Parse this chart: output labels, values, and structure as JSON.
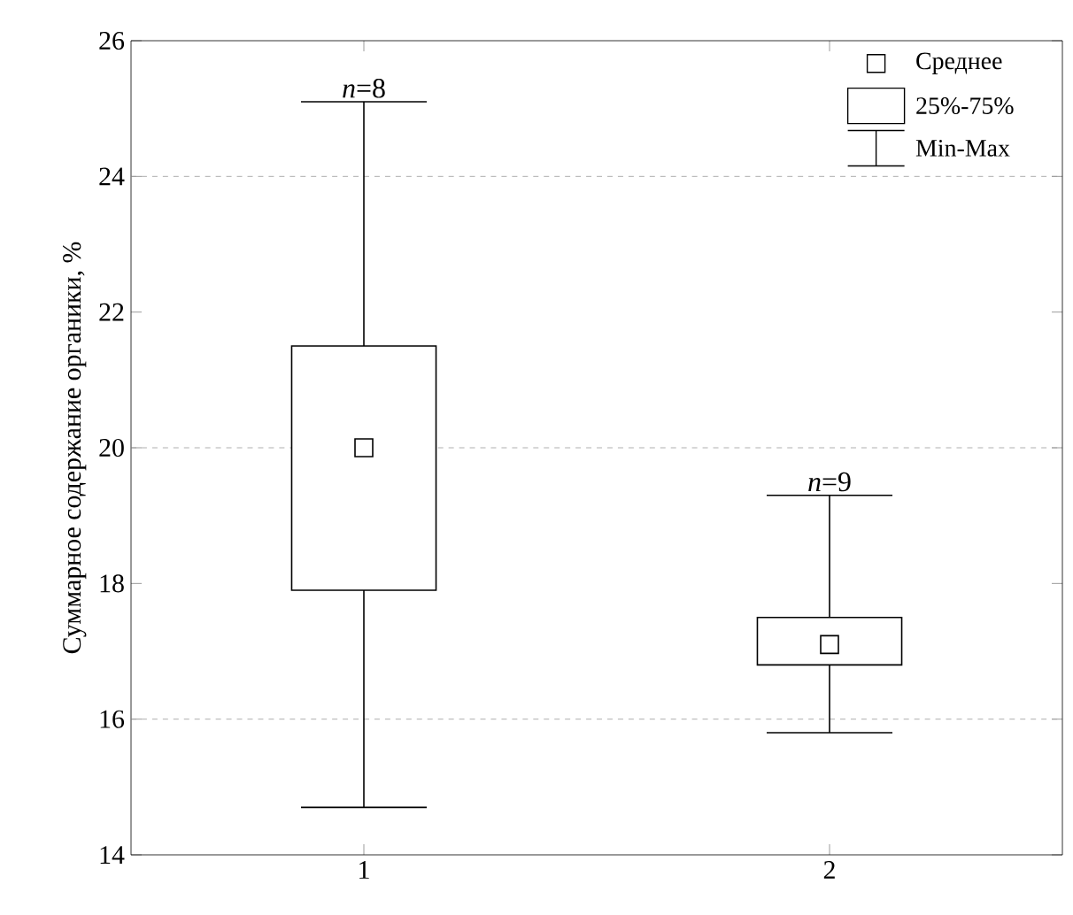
{
  "chart_data": {
    "type": "box",
    "ylabel": "Суммарное содержание органики, %",
    "categories": [
      "1",
      "2"
    ],
    "boxes": [
      {
        "low": 14.7,
        "q1": 17.9,
        "median": null,
        "q3": 21.5,
        "high": 25.1,
        "mean": 20.0
      },
      {
        "low": 15.8,
        "q1": 16.8,
        "median": null,
        "q3": 17.5,
        "high": 19.3,
        "mean": 17.1
      }
    ],
    "color": "#000000",
    "marker": "square",
    "ylim": [
      14,
      26
    ],
    "yticks": [
      14,
      16,
      18,
      20,
      22,
      24,
      26
    ],
    "ref_lines": [
      {
        "axis": "y",
        "value": 16,
        "line_style": "dashed"
      },
      {
        "axis": "y",
        "value": 20,
        "line_style": "dashed"
      },
      {
        "axis": "y",
        "value": 24,
        "line_style": "dashed"
      }
    ],
    "annotations": [
      {
        "text": "*n*=8",
        "x": "1",
        "y": 25.1
      },
      {
        "text": "*n*=9",
        "x": "2",
        "y": 19.3
      },
      "Среднее",
      "25%-75%",
      "Min-Max"
    ]
  }
}
